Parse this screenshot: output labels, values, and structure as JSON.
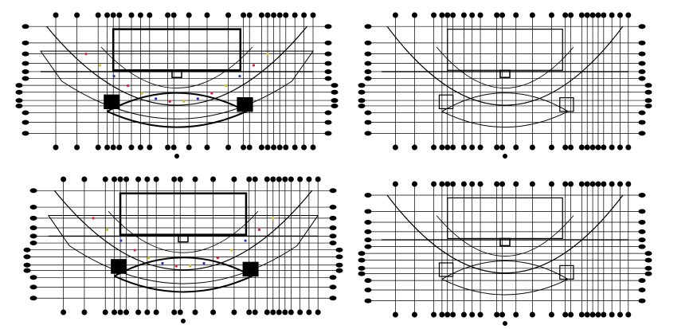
{
  "drawing": {
    "background": "#ffffff",
    "line_color": "#000000",
    "accent_colors": [
      "#e0203a",
      "#d8c020",
      "#2030c0"
    ]
  }
}
